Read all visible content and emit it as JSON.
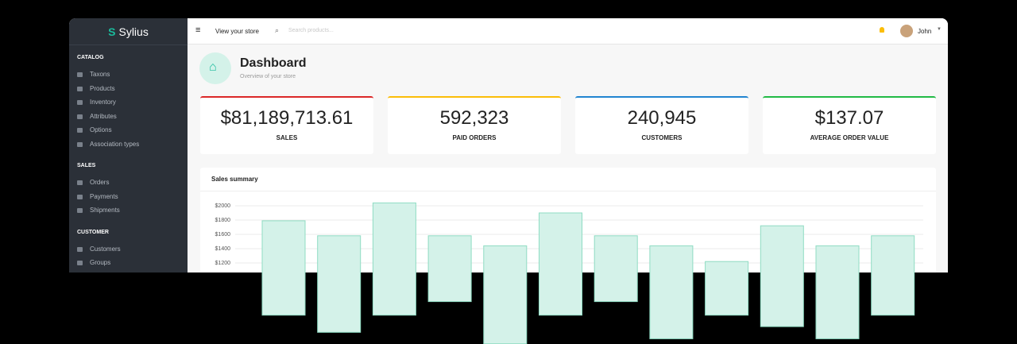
{
  "sidebar": {
    "logo": "Sylius",
    "sections": [
      {
        "title": "CATALOG",
        "items": [
          "Taxons",
          "Products",
          "Inventory",
          "Attributes",
          "Options",
          "Association types"
        ]
      },
      {
        "title": "SALES",
        "items": [
          "Orders",
          "Payments",
          "Shipments"
        ]
      },
      {
        "title": "CUSTOMER",
        "items": [
          "Customers",
          "Groups"
        ]
      }
    ]
  },
  "topbar": {
    "view_store": "View your store",
    "search_placeholder": "Search products...",
    "user": "John"
  },
  "header": {
    "title": "Dashboard",
    "subtitle": "Overview of your store"
  },
  "stats": [
    {
      "value": "$81,189,713.61",
      "label": "SALES"
    },
    {
      "value": "592,323",
      "label": "PAID ORDERS"
    },
    {
      "value": "240,945",
      "label": "CUSTOMERS"
    },
    {
      "value": "$137.07",
      "label": "AVERAGE ORDER VALUE"
    }
  ],
  "chart_data": {
    "type": "bar",
    "title": "Sales summary",
    "values": [
      [
        470,
        1790
      ],
      [
        230,
        1580
      ],
      [
        470,
        2040
      ],
      [
        660,
        1580
      ],
      [
        70,
        1440
      ],
      [
        470,
        1900
      ],
      [
        660,
        1580
      ],
      [
        140,
        1440
      ],
      [
        470,
        1220
      ],
      [
        310,
        1720
      ],
      [
        140,
        1440
      ],
      [
        470,
        1580
      ]
    ],
    "ylim": [
      0,
      2100
    ],
    "yticks": [
      {
        "value": 2000,
        "label": "$2000"
      },
      {
        "value": 1800,
        "label": "$1800"
      },
      {
        "value": 1600,
        "label": "$1600"
      },
      {
        "value": 1400,
        "label": "$1400"
      },
      {
        "value": 1200,
        "label": "$1200"
      }
    ],
    "grid": true,
    "color": "#d4f2e9"
  }
}
